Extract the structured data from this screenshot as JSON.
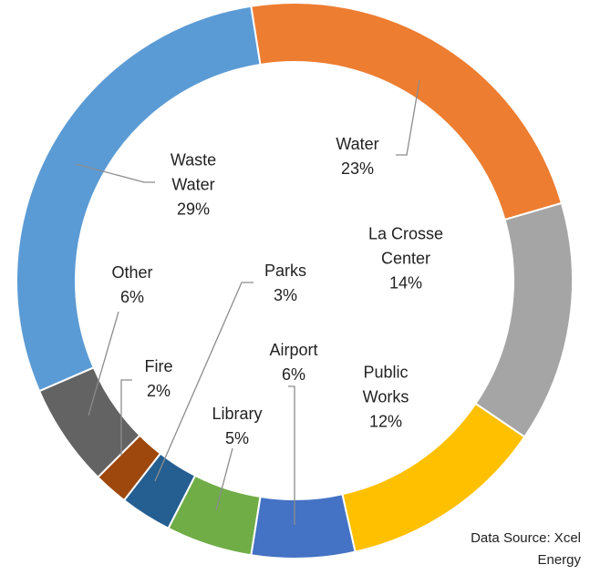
{
  "chart_data": {
    "type": "donut",
    "categories": [
      "Water",
      "La Crosse Center",
      "Public Works",
      "Airport",
      "Library",
      "Parks",
      "Fire",
      "Other",
      "Waste Water"
    ],
    "values": [
      23,
      14,
      12,
      6,
      5,
      3,
      2,
      6,
      29
    ],
    "value_labels": [
      "23%",
      "14%",
      "12%",
      "6%",
      "5%",
      "3%",
      "2%",
      "6%",
      "29%"
    ],
    "colors": [
      "#ED7D31",
      "#A5A5A5",
      "#FFC000",
      "#4472C4",
      "#70AD47",
      "#255E91",
      "#9E480E",
      "#636363",
      "#5B9BD5"
    ],
    "source": "Data Source: Xcel Energy"
  }
}
